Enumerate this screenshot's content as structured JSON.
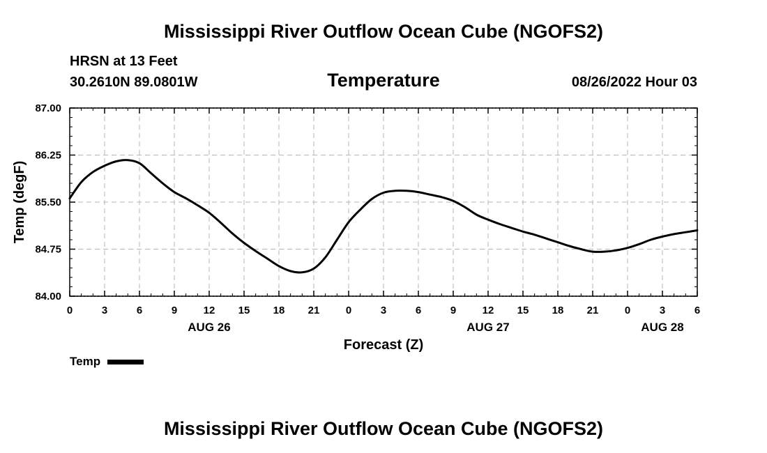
{
  "page": {
    "title_top": "Mississippi River Outflow Ocean Cube (NGOFS2)",
    "title_bottom": "Mississippi River Outflow Ocean Cube (NGOFS2)",
    "station_line": "HRSN at 13 Feet",
    "coords_line": "30.2610N  89.0801W",
    "datetime_line": "08/26/2022 Hour 03"
  },
  "chart_data": {
    "type": "line",
    "title": "Temperature",
    "xlabel": "Forecast (Z)",
    "ylabel": "Temp (degF)",
    "xlim": [
      0,
      54
    ],
    "ylim": [
      84.0,
      87.0
    ],
    "yticks": [
      "84.00",
      "84.75",
      "85.50",
      "86.25",
      "87.00"
    ],
    "ytick_values": [
      84.0,
      84.75,
      85.5,
      86.25,
      87.0
    ],
    "xtick_values": [
      0,
      3,
      6,
      9,
      12,
      15,
      18,
      21,
      24,
      27,
      30,
      33,
      36,
      39,
      42,
      45,
      48,
      51,
      54
    ],
    "xticks": [
      "0",
      "3",
      "6",
      "9",
      "12",
      "15",
      "18",
      "21",
      "0",
      "3",
      "6",
      "9",
      "12",
      "15",
      "18",
      "21",
      "0",
      "3",
      "6"
    ],
    "date_labels": [
      {
        "label": "AUG 26",
        "at_hour": 12
      },
      {
        "label": "AUG 27",
        "at_hour": 36
      },
      {
        "label": "AUG 28",
        "at_hour": 51
      }
    ],
    "grid": true,
    "legend": {
      "label": "Temp",
      "position": "bottom-left"
    },
    "series": [
      {
        "name": "Temp",
        "x": [
          0,
          1,
          2,
          3,
          4,
          5,
          6,
          7,
          8,
          9,
          10,
          11,
          12,
          13,
          14,
          15,
          16,
          17,
          18,
          19,
          20,
          21,
          22,
          23,
          24,
          25,
          26,
          27,
          28,
          29,
          30,
          31,
          32,
          33,
          34,
          35,
          36,
          37,
          38,
          39,
          40,
          41,
          42,
          43,
          44,
          45,
          46,
          47,
          48,
          49,
          50,
          51,
          52,
          53,
          54
        ],
        "y": [
          85.56,
          85.82,
          85.98,
          86.08,
          86.15,
          86.17,
          86.12,
          85.96,
          85.8,
          85.66,
          85.56,
          85.45,
          85.33,
          85.17,
          85.0,
          84.85,
          84.72,
          84.6,
          84.48,
          84.4,
          84.38,
          84.44,
          84.62,
          84.9,
          85.18,
          85.38,
          85.55,
          85.65,
          85.68,
          85.68,
          85.66,
          85.62,
          85.58,
          85.52,
          85.42,
          85.3,
          85.22,
          85.15,
          85.09,
          85.03,
          84.98,
          84.92,
          84.86,
          84.8,
          84.75,
          84.71,
          84.71,
          84.73,
          84.77,
          84.83,
          84.9,
          84.95,
          84.99,
          85.02,
          85.05
        ]
      }
    ]
  }
}
